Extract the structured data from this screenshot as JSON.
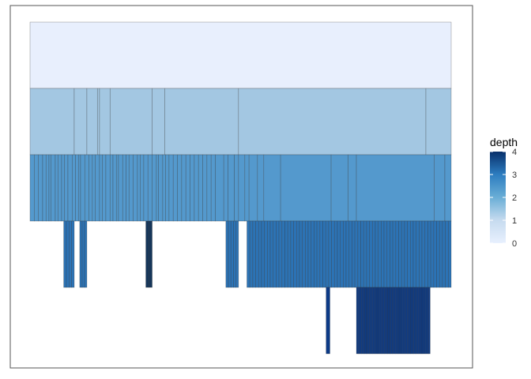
{
  "chart_data": {
    "type": "icicle",
    "title": "",
    "xlabel": "",
    "ylabel": "",
    "grid": false,
    "legend_position": "right",
    "legend": {
      "title": "depth",
      "ticks": [
        0,
        1,
        2,
        3,
        4
      ],
      "range": [
        0,
        4
      ],
      "colors": {
        "low": "#e8f0fe",
        "mid1": "#c6dbef",
        "mid2": "#6aaed6",
        "mid3": "#2d7dc0",
        "high": "#08306b"
      }
    },
    "x_domain": [
      0,
      1
    ],
    "levels": [
      {
        "depth": 0,
        "boundaries": [
          0.0,
          1.0
        ],
        "fill": "#e8effd"
      },
      {
        "depth": 1,
        "boundaries": [
          0.0,
          0.105,
          0.135,
          0.16,
          0.165,
          0.19,
          0.29,
          0.32,
          0.495,
          0.94,
          1.0
        ],
        "fill": "#a3c7e2"
      },
      {
        "depth": 2,
        "start": 0.0,
        "end": 1.0,
        "dense_boundaries": [
          0.01,
          0.02,
          0.03,
          0.038,
          0.045,
          0.05,
          0.06,
          0.067,
          0.075,
          0.082,
          0.09,
          0.1,
          0.108,
          0.115,
          0.12,
          0.13,
          0.14,
          0.148,
          0.155,
          0.165,
          0.172,
          0.18,
          0.19,
          0.197,
          0.205,
          0.21,
          0.22,
          0.228,
          0.235,
          0.245,
          0.255,
          0.262,
          0.27,
          0.28,
          0.29,
          0.3,
          0.305,
          0.315,
          0.322,
          0.33,
          0.34,
          0.35,
          0.36,
          0.37,
          0.38,
          0.39,
          0.4,
          0.41,
          0.42,
          0.43,
          0.44,
          0.46,
          0.47,
          0.485,
          0.495,
          0.51,
          0.52,
          0.54,
          0.555,
          0.595,
          0.715,
          0.755,
          0.775,
          0.96,
          0.985
        ],
        "fill": "#5499cd"
      },
      {
        "depth": 3,
        "segments": [
          {
            "start": 0.08,
            "end": 0.105,
            "n": 4,
            "fill": "#2c73b5"
          },
          {
            "start": 0.118,
            "end": 0.135,
            "n": 3,
            "fill": "#2c73b5"
          },
          {
            "start": 0.275,
            "end": 0.29,
            "n": 2,
            "fill": "#16365a"
          },
          {
            "start": 0.465,
            "end": 0.495,
            "n": 5,
            "fill": "#2c73b5"
          },
          {
            "start": 0.515,
            "end": 1.0,
            "n": 70,
            "fill": "#2c73b5"
          }
        ]
      },
      {
        "depth": 4,
        "segments": [
          {
            "start": 0.703,
            "end": 0.712,
            "n": 1,
            "fill": "#0c3a86"
          },
          {
            "start": 0.775,
            "end": 0.95,
            "n": 45,
            "fill": "#0c3a86"
          }
        ]
      }
    ]
  }
}
